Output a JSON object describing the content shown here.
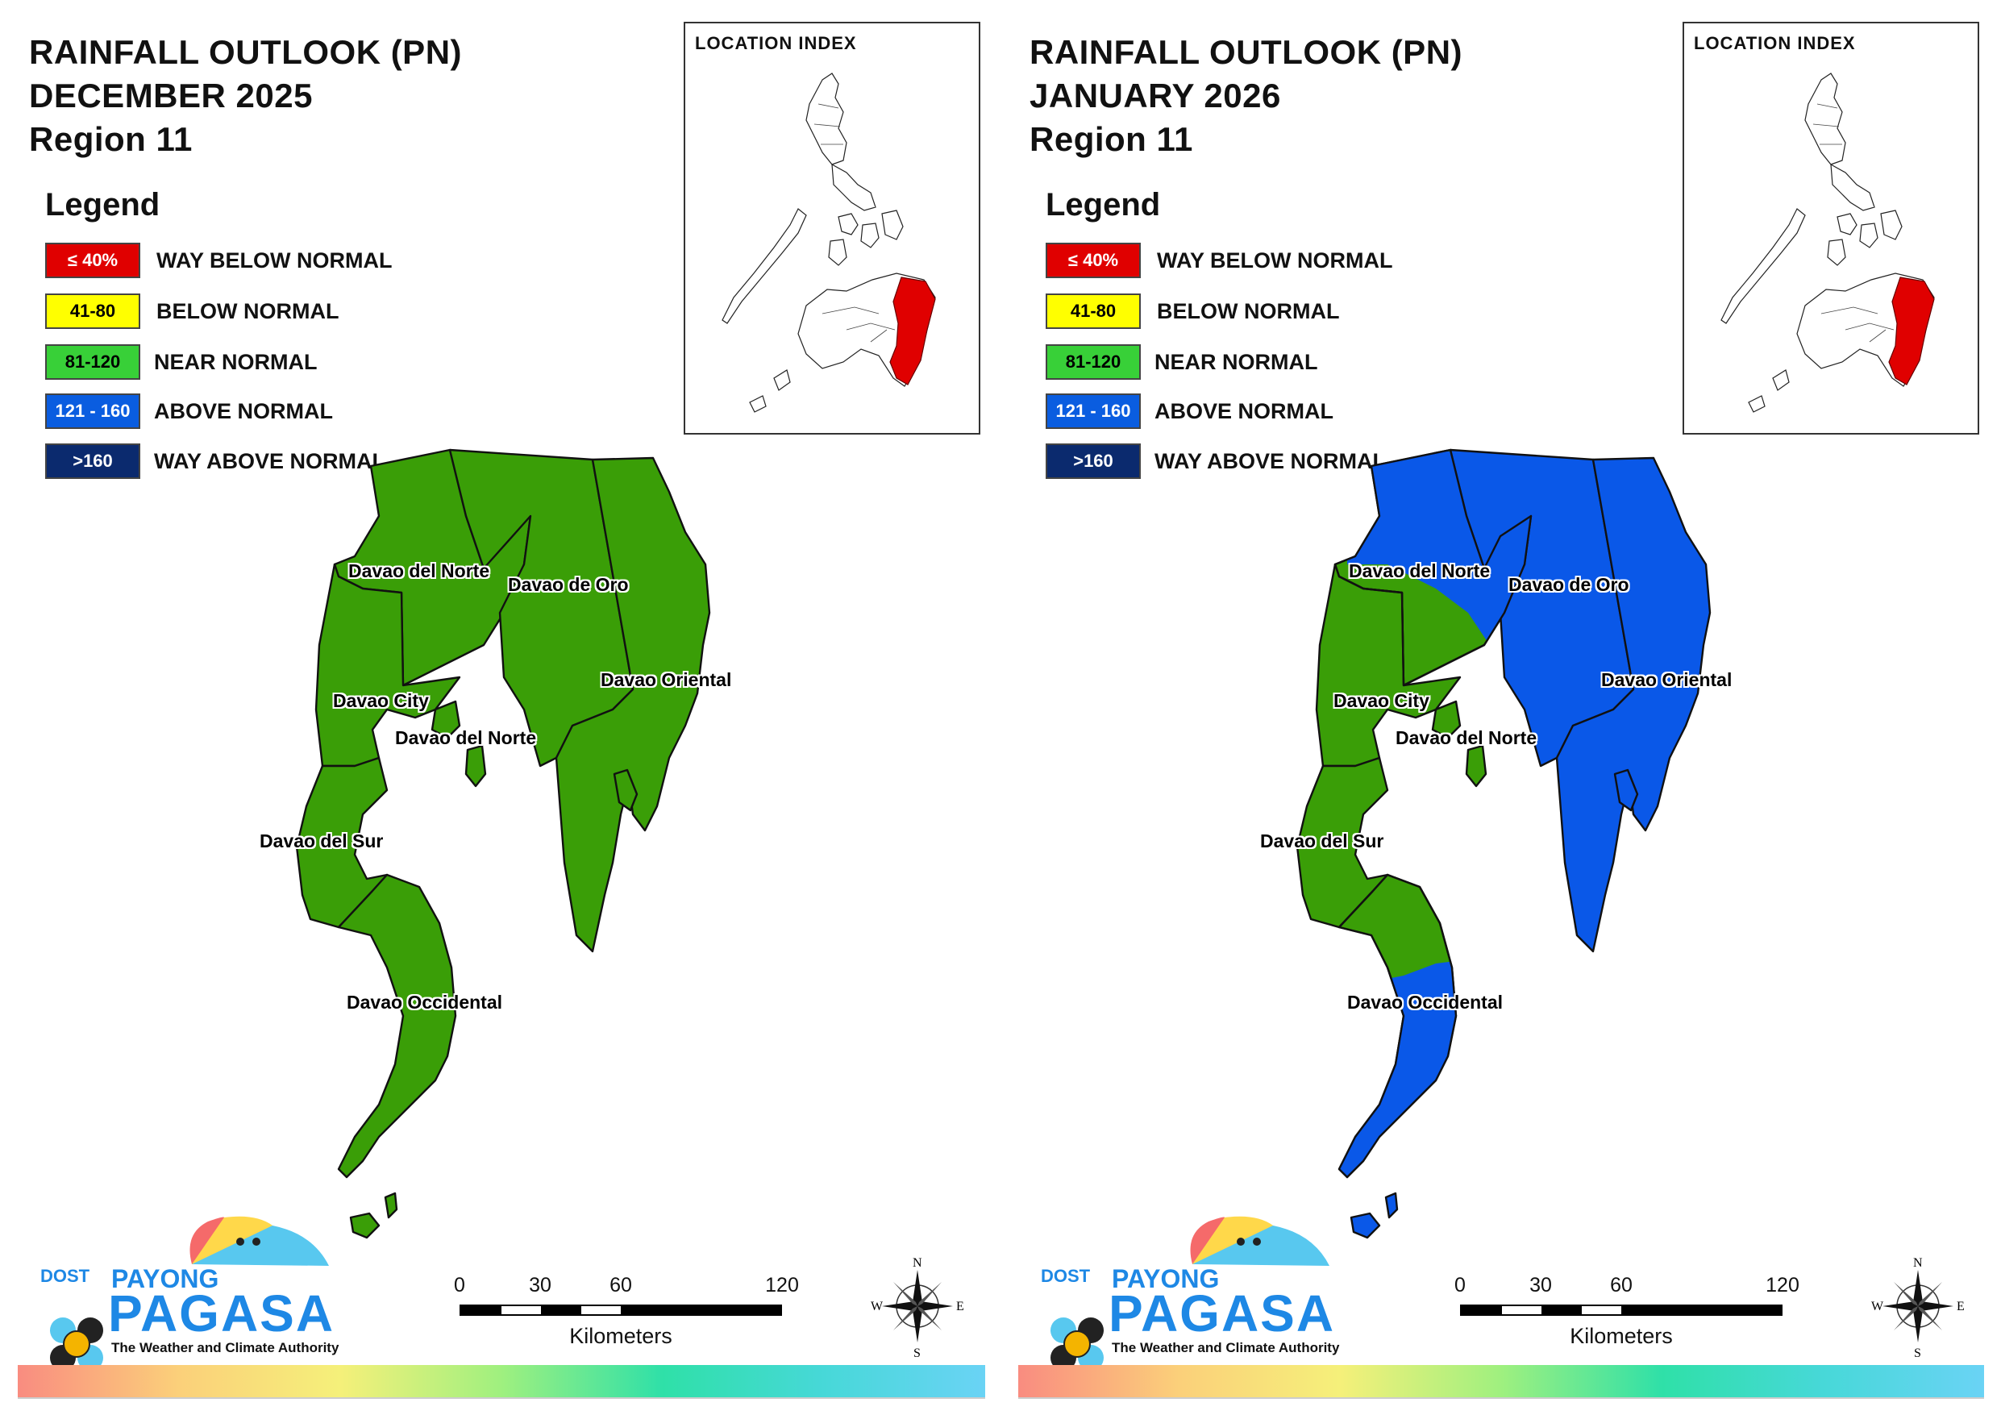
{
  "panels": [
    {
      "title_line1": "RAINFALL OUTLOOK (PN)",
      "title_line2": "DECEMBER 2025",
      "title_line3": "Region 11",
      "map_states": {
        "davao_de_oro": "near_normal",
        "davao_oriental": "near_normal",
        "davao_del_norte": "near_normal",
        "davao_city": "near_normal",
        "davao_del_sur": "near_normal",
        "davao_occidental": "near_normal"
      }
    },
    {
      "title_line1": "RAINFALL OUTLOOK (PN)",
      "title_line2": "JANUARY 2026",
      "title_line3": "Region 11",
      "map_states": {
        "davao_de_oro": "above_normal",
        "davao_oriental": "above_normal",
        "davao_del_norte": "mixed_near_above",
        "davao_city": "near_normal",
        "davao_del_sur": "near_normal",
        "davao_occidental": "mixed_near_above"
      }
    }
  ],
  "legend": {
    "title": "Legend",
    "items": [
      {
        "range": "≤ 40%",
        "label": "WAY BELOW NORMAL",
        "color": "#e00000",
        "text_color": "#ffffff"
      },
      {
        "range": "41-80",
        "label": "BELOW NORMAL",
        "color": "#ffff00",
        "text_color": "#000000"
      },
      {
        "range": "81-120",
        "label": "NEAR NORMAL",
        "color": "#38d038",
        "text_color": "#000000"
      },
      {
        "range": "121 - 160",
        "label": "ABOVE NORMAL",
        "color": "#0a5de0",
        "text_color": "#ffffff"
      },
      {
        "range": ">160",
        "label": "WAY ABOVE NORMAL",
        "color": "#0b2a6e",
        "text_color": "#ffffff"
      }
    ]
  },
  "category_colors": {
    "near_normal": "#3a9e07",
    "above_normal": "#0a58e8"
  },
  "location_index": {
    "title": "LOCATION INDEX",
    "highlight_color": "#e00000"
  },
  "province_labels": {
    "davao_del_norte_north": "Davao del Norte",
    "davao_de_oro": "Davao de Oro",
    "davao_oriental": "Davao Oriental",
    "davao_city": "Davao City",
    "davao_del_norte_south": "Davao del Norte",
    "davao_del_sur": "Davao del Sur",
    "davao_occidental": "Davao Occidental"
  },
  "scale_bar": {
    "ticks": [
      "0",
      "30",
      "60",
      "120"
    ],
    "unit": "Kilometers"
  },
  "compass": {
    "n": "N",
    "s": "S",
    "e": "E",
    "w": "W"
  },
  "logo": {
    "dost": "DOST",
    "payong": "PAYONG",
    "pagasa": "PAGASA",
    "tagline": "The Weather and Climate Authority"
  }
}
